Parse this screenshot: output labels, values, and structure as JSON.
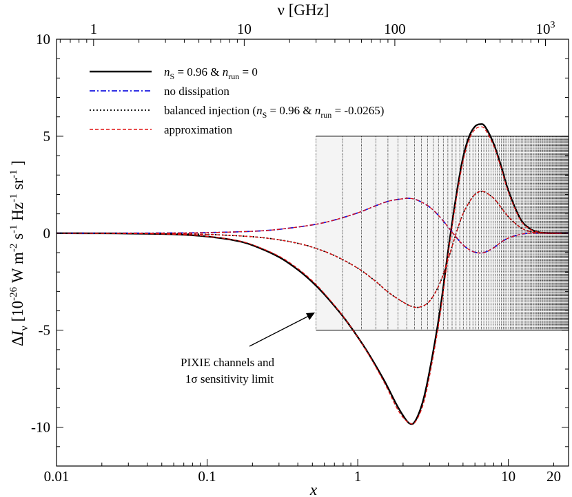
{
  "chart_data": {
    "type": "line",
    "xscale": "log",
    "xlim": [
      0.01,
      25.1
    ],
    "ylim": [
      -12,
      10
    ],
    "xlabel": "x",
    "ylabel": "ΔI_ν [10^-26 W m^-2 s^-1 Hz^-1 sr^-1]",
    "ylabel_parts": {
      "delta": "Δ",
      "I": "I",
      "nu": "ν",
      "bracket_open": "[10",
      "e1": "-26",
      "w_m": " W m",
      "e2": "-2",
      "s": " s",
      "e3": "-1",
      "hz": " Hz",
      "e4": "-1",
      "sr": " sr",
      "e5": "-1",
      "bracket_close": " ]"
    },
    "top_axis": {
      "label": "ν  [GHz]",
      "ticks": [
        {
          "x": 0.01763,
          "label": "1"
        },
        {
          "x": 0.1763,
          "label": "10"
        },
        {
          "x": 1.763,
          "label": "100"
        },
        {
          "x": 17.63,
          "label": "10",
          "sup": "3"
        }
      ]
    },
    "x_ticks": [
      {
        "value": 0.01,
        "label": "0.01"
      },
      {
        "value": 0.1,
        "label": "0.1"
      },
      {
        "value": 1,
        "label": "1"
      },
      {
        "value": 10,
        "label": "10"
      },
      {
        "value": 20,
        "label": "20"
      }
    ],
    "y_ticks": [
      {
        "value": 10,
        "label": "10"
      },
      {
        "value": 5,
        "label": "5"
      },
      {
        "value": 0,
        "label": "0"
      },
      {
        "value": -5,
        "label": "-5"
      },
      {
        "value": -10,
        "label": "-10"
      }
    ],
    "series": [
      {
        "name": "nS = 0.96 & nrun = 0",
        "legend": {
          "n1": "n",
          "s1": "S",
          "mid": " = 0.96 & ",
          "n2": "n",
          "s2": "run",
          "end": " = 0"
        },
        "style": "solid",
        "color": "#000000",
        "points": [
          [
            0.01,
            0
          ],
          [
            0.02,
            -0.005
          ],
          [
            0.03,
            -0.015
          ],
          [
            0.05,
            -0.04
          ],
          [
            0.07,
            -0.08
          ],
          [
            0.1,
            -0.17
          ],
          [
            0.15,
            -0.36
          ],
          [
            0.2,
            -0.62
          ],
          [
            0.3,
            -1.23
          ],
          [
            0.4,
            -1.88
          ],
          [
            0.5,
            -2.52
          ],
          [
            0.6,
            -3.15
          ],
          [
            0.8,
            -4.3
          ],
          [
            1.0,
            -5.35
          ],
          [
            1.2,
            -6.3
          ],
          [
            1.5,
            -7.6
          ],
          [
            1.8,
            -8.8
          ],
          [
            2.0,
            -9.4
          ],
          [
            2.2,
            -9.8
          ],
          [
            2.4,
            -9.7
          ],
          [
            2.7,
            -8.7
          ],
          [
            3.0,
            -7.1
          ],
          [
            3.5,
            -4.1
          ],
          [
            4.0,
            -0.8
          ],
          [
            4.5,
            1.9
          ],
          [
            5.0,
            3.9
          ],
          [
            5.5,
            5.0
          ],
          [
            6.0,
            5.5
          ],
          [
            6.5,
            5.62
          ],
          [
            7.0,
            5.5
          ],
          [
            8.0,
            4.6
          ],
          [
            9.0,
            3.4
          ],
          [
            10.0,
            2.2
          ],
          [
            12.0,
            0.75
          ],
          [
            14.0,
            0.22
          ],
          [
            16.0,
            0.05
          ],
          [
            18.0,
            0.01
          ],
          [
            20.0,
            0
          ],
          [
            25.1,
            0
          ]
        ]
      },
      {
        "name": "no dissipation",
        "style": "dash-dot",
        "color": "#1414e0",
        "points": [
          [
            0.01,
            0
          ],
          [
            0.03,
            0.005
          ],
          [
            0.05,
            0.01
          ],
          [
            0.1,
            0.03
          ],
          [
            0.2,
            0.1
          ],
          [
            0.3,
            0.2
          ],
          [
            0.5,
            0.43
          ],
          [
            0.7,
            0.68
          ],
          [
            1.0,
            1.05
          ],
          [
            1.3,
            1.4
          ],
          [
            1.6,
            1.65
          ],
          [
            2.0,
            1.78
          ],
          [
            2.2,
            1.8
          ],
          [
            2.5,
            1.7
          ],
          [
            3.0,
            1.35
          ],
          [
            3.5,
            0.85
          ],
          [
            4.0,
            0.3
          ],
          [
            4.5,
            -0.2
          ],
          [
            5.0,
            -0.6
          ],
          [
            5.5,
            -0.85
          ],
          [
            6.0,
            -0.98
          ],
          [
            6.5,
            -1.02
          ],
          [
            7.0,
            -0.98
          ],
          [
            8.0,
            -0.75
          ],
          [
            9.0,
            -0.45
          ],
          [
            10.0,
            -0.25
          ],
          [
            12.0,
            -0.06
          ],
          [
            14.0,
            0
          ],
          [
            20.0,
            0
          ],
          [
            25.1,
            0
          ]
        ]
      },
      {
        "name": "balanced injection (nS = 0.96 & nrun = -0.0265)",
        "legend": {
          "pre": "balanced injection (",
          "n1": "n",
          "s1": "S",
          "mid": " = 0.96 & ",
          "n2": "n",
          "s2": "run",
          "end": " = -0.0265)"
        },
        "style": "dotted",
        "color": "#000000",
        "points": [
          [
            0.01,
            0
          ],
          [
            0.02,
            -0.005
          ],
          [
            0.05,
            -0.02
          ],
          [
            0.1,
            -0.06
          ],
          [
            0.2,
            -0.18
          ],
          [
            0.3,
            -0.34
          ],
          [
            0.4,
            -0.52
          ],
          [
            0.5,
            -0.72
          ],
          [
            0.7,
            -1.15
          ],
          [
            1.0,
            -1.8
          ],
          [
            1.3,
            -2.45
          ],
          [
            1.6,
            -3.05
          ],
          [
            2.0,
            -3.55
          ],
          [
            2.3,
            -3.78
          ],
          [
            2.6,
            -3.8
          ],
          [
            3.0,
            -3.5
          ],
          [
            3.5,
            -2.6
          ],
          [
            4.0,
            -1.3
          ],
          [
            4.5,
            0
          ],
          [
            5.0,
            1.0
          ],
          [
            5.5,
            1.6
          ],
          [
            6.0,
            2.0
          ],
          [
            6.5,
            2.15
          ],
          [
            7.0,
            2.12
          ],
          [
            8.0,
            1.8
          ],
          [
            9.0,
            1.3
          ],
          [
            10.0,
            0.85
          ],
          [
            12.0,
            0.3
          ],
          [
            14.0,
            0.08
          ],
          [
            16.0,
            0.02
          ],
          [
            20.0,
            0
          ],
          [
            25.1,
            0
          ]
        ]
      },
      {
        "name": "approximation",
        "style": "dashed",
        "color": "#e01010",
        "points": [
          [
            0.01,
            0
          ],
          [
            0.02,
            -0.005
          ],
          [
            0.03,
            -0.015
          ],
          [
            0.05,
            -0.038
          ],
          [
            0.07,
            -0.076
          ],
          [
            0.1,
            -0.16
          ],
          [
            0.15,
            -0.34
          ],
          [
            0.2,
            -0.59
          ],
          [
            0.3,
            -1.18
          ],
          [
            0.4,
            -1.82
          ],
          [
            0.5,
            -2.46
          ],
          [
            0.6,
            -3.1
          ],
          [
            0.8,
            -4.28
          ],
          [
            1.0,
            -5.36
          ],
          [
            1.2,
            -6.35
          ],
          [
            1.5,
            -7.7
          ],
          [
            1.8,
            -8.95
          ],
          [
            2.0,
            -9.5
          ],
          [
            2.2,
            -9.78
          ],
          [
            2.4,
            -9.75
          ],
          [
            2.7,
            -8.9
          ],
          [
            3.0,
            -7.35
          ],
          [
            3.5,
            -4.35
          ],
          [
            4.0,
            -1.0
          ],
          [
            4.5,
            1.7
          ],
          [
            5.0,
            3.7
          ],
          [
            5.5,
            4.85
          ],
          [
            6.0,
            5.35
          ],
          [
            6.5,
            5.48
          ],
          [
            7.0,
            5.36
          ],
          [
            8.0,
            4.5
          ],
          [
            9.0,
            3.3
          ],
          [
            10.0,
            2.12
          ],
          [
            12.0,
            0.7
          ],
          [
            14.0,
            0.2
          ],
          [
            16.0,
            0.05
          ],
          [
            18.0,
            0.01
          ],
          [
            20.0,
            0
          ],
          [
            25.1,
            0
          ]
        ]
      },
      {
        "name": "approximation (no dissipation)",
        "style": "dashed",
        "color": "#e01010",
        "in_legend": false,
        "points": [
          [
            0.01,
            0
          ],
          [
            0.03,
            0.005
          ],
          [
            0.05,
            0.01
          ],
          [
            0.1,
            0.03
          ],
          [
            0.2,
            0.1
          ],
          [
            0.3,
            0.2
          ],
          [
            0.5,
            0.43
          ],
          [
            0.7,
            0.68
          ],
          [
            1.0,
            1.05
          ],
          [
            1.3,
            1.4
          ],
          [
            1.6,
            1.65
          ],
          [
            2.0,
            1.78
          ],
          [
            2.2,
            1.8
          ],
          [
            2.5,
            1.7
          ],
          [
            3.0,
            1.35
          ],
          [
            3.5,
            0.85
          ],
          [
            4.0,
            0.3
          ],
          [
            4.5,
            -0.2
          ],
          [
            5.0,
            -0.6
          ],
          [
            5.5,
            -0.85
          ],
          [
            6.0,
            -0.98
          ],
          [
            6.5,
            -1.02
          ],
          [
            7.0,
            -0.98
          ],
          [
            8.0,
            -0.75
          ],
          [
            9.0,
            -0.45
          ],
          [
            10.0,
            -0.25
          ],
          [
            12.0,
            -0.06
          ],
          [
            14.0,
            0
          ],
          [
            20.0,
            0
          ],
          [
            25.1,
            0
          ]
        ]
      },
      {
        "name": "approximation (balanced injection)",
        "style": "dashed",
        "color": "#e01010",
        "in_legend": false,
        "points": [
          [
            0.01,
            0
          ],
          [
            0.02,
            -0.005
          ],
          [
            0.05,
            -0.02
          ],
          [
            0.1,
            -0.06
          ],
          [
            0.2,
            -0.18
          ],
          [
            0.3,
            -0.34
          ],
          [
            0.4,
            -0.52
          ],
          [
            0.5,
            -0.72
          ],
          [
            0.7,
            -1.15
          ],
          [
            1.0,
            -1.8
          ],
          [
            1.3,
            -2.45
          ],
          [
            1.6,
            -3.05
          ],
          [
            2.0,
            -3.55
          ],
          [
            2.3,
            -3.78
          ],
          [
            2.6,
            -3.8
          ],
          [
            3.0,
            -3.5
          ],
          [
            3.5,
            -2.6
          ],
          [
            4.0,
            -1.3
          ],
          [
            4.5,
            0
          ],
          [
            5.0,
            1.0
          ],
          [
            5.5,
            1.6
          ],
          [
            6.0,
            2.0
          ],
          [
            6.5,
            2.15
          ],
          [
            7.0,
            2.12
          ],
          [
            8.0,
            1.8
          ],
          [
            9.0,
            1.3
          ],
          [
            10.0,
            0.85
          ],
          [
            12.0,
            0.3
          ],
          [
            14.0,
            0.08
          ],
          [
            16.0,
            0.02
          ],
          [
            20.0,
            0
          ],
          [
            25.1,
            0
          ]
        ]
      }
    ],
    "pixie_band": {
      "x_start": 0.5288,
      "x_end": 25.1,
      "y_low": -5,
      "y_high": 5,
      "channel_spacing_x": 0.2644
    },
    "annotation": {
      "lines": [
        "PIXIE channels and",
        "1σ sensitivity limit"
      ],
      "line2_parts": {
        "num": "1",
        "sigma": "σ",
        "rest": " sensitivity limit"
      },
      "arrow_to": {
        "x": 0.52,
        "y": -4.2
      }
    }
  }
}
